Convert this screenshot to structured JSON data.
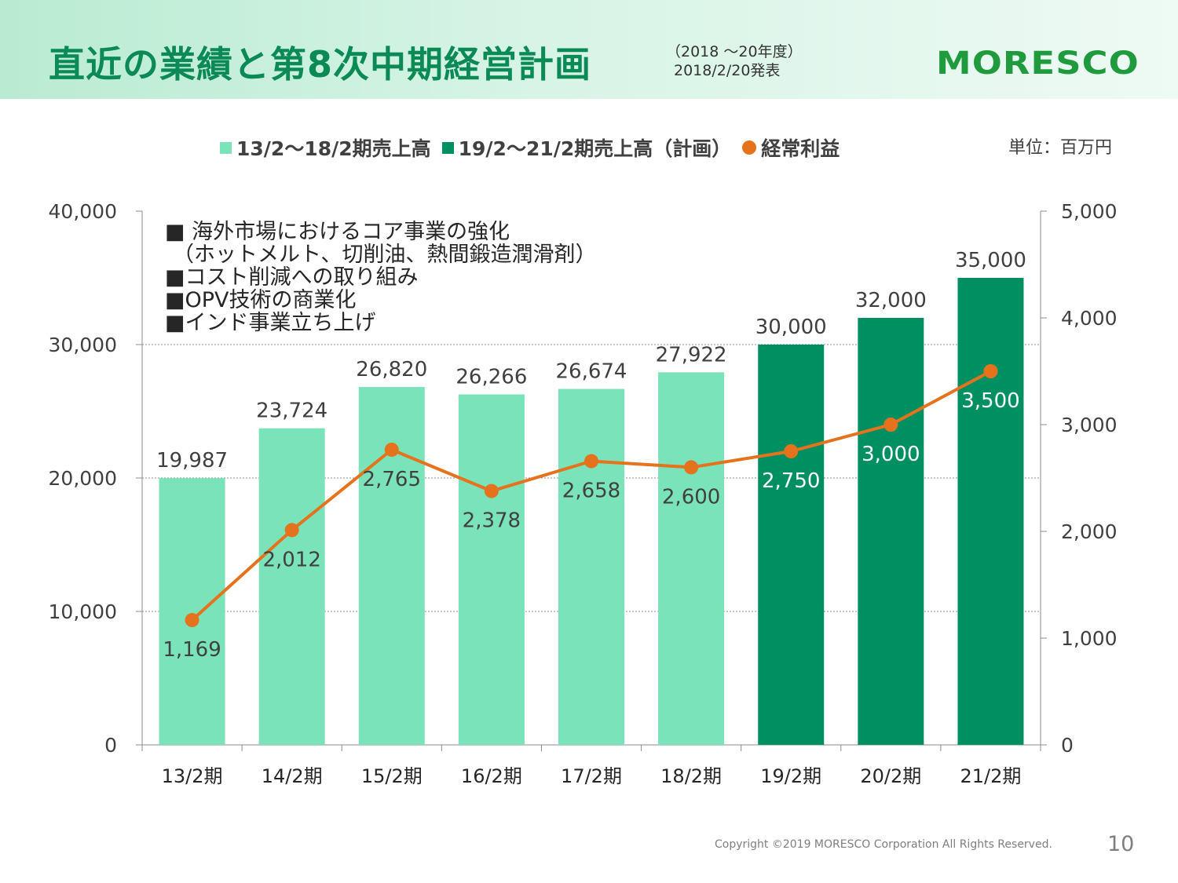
{
  "header": {
    "title": "直近の業績と第8次中期経営計画",
    "subtitle_line1": "（2018 ～20年度）",
    "subtitle_line2": "2018/2/20発表",
    "logo_text": "MORESCO"
  },
  "legend": {
    "series1": "13/2～18/2期売上高",
    "series2": "19/2～21/2期売上高（計画）",
    "series3": "経常利益"
  },
  "unit_label": "単位：百万円",
  "notes": [
    "■ 海外市場におけるコア事業の強化",
    "（ホットメルト、切削油、熱間鍛造潤滑剤）",
    "■コスト削減への取り組み",
    "■OPV技術の商業化",
    "■インド事業立ち上げ"
  ],
  "colors": {
    "actual_bar": "#7ae3b9",
    "plan_bar": "#008f60",
    "line": "#e5731d",
    "title": "#0b8a55",
    "logo": "#1f9a3d"
  },
  "chart_data": {
    "type": "bar+line",
    "categories": [
      "13/2期",
      "14/2期",
      "15/2期",
      "16/2期",
      "17/2期",
      "18/2期",
      "19/2期",
      "20/2期",
      "21/2期"
    ],
    "series": [
      {
        "name": "13/2～18/2期売上高",
        "axis": "left",
        "type": "bar",
        "values": [
          19987,
          23724,
          26820,
          26266,
          26674,
          27922,
          null,
          null,
          null
        ]
      },
      {
        "name": "19/2～21/2期売上高（計画）",
        "axis": "left",
        "type": "bar",
        "values": [
          null,
          null,
          null,
          null,
          null,
          null,
          30000,
          32000,
          35000
        ]
      },
      {
        "name": "経常利益",
        "axis": "right",
        "type": "line",
        "values": [
          1169,
          2012,
          2765,
          2378,
          2658,
          2600,
          2750,
          3000,
          3500
        ]
      }
    ],
    "bar_labels": [
      "19,987",
      "23,724",
      "26,820",
      "26,266",
      "26,674",
      "27,922",
      "30,000",
      "32,000",
      "35,000"
    ],
    "line_labels": [
      "1,169",
      "2,012",
      "2,765",
      "2,378",
      "2,658",
      "2,600",
      "2,750",
      "3,000",
      "3,500"
    ],
    "left_axis": {
      "min": 0,
      "max": 40000,
      "ticks": [
        0,
        10000,
        20000,
        30000,
        40000
      ],
      "tick_labels": [
        "0",
        "10,000",
        "20,000",
        "30,000",
        "40,000"
      ]
    },
    "right_axis": {
      "min": 0,
      "max": 5000,
      "ticks": [
        0,
        1000,
        2000,
        3000,
        4000,
        5000
      ],
      "tick_labels": [
        "0",
        "1,000",
        "2,000",
        "3,000",
        "4,000",
        "5,000"
      ]
    },
    "grid": "dotted horizontal"
  },
  "footer": {
    "copyright": "Copyright ©2019 MORESCO Corporation All Rights Reserved.",
    "page_number": "10"
  }
}
